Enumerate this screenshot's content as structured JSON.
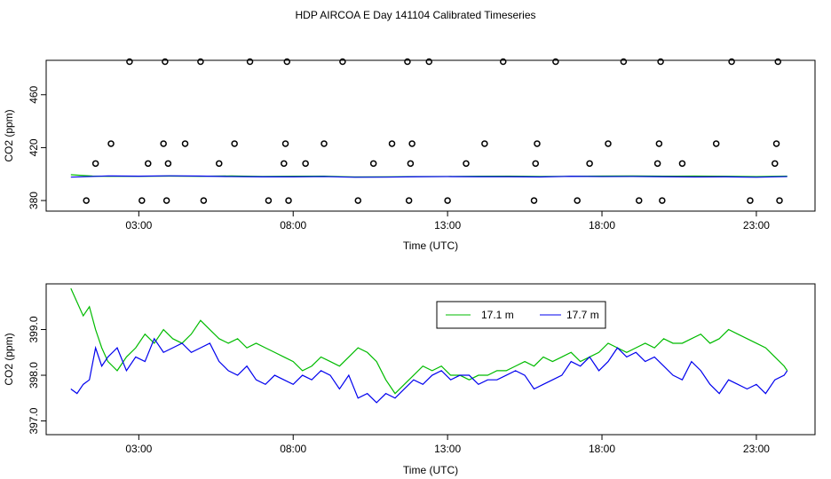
{
  "figure": {
    "title": "HDP AIRCOA E  Day 141104  Calibrated Timeseries"
  },
  "colors": {
    "green": "#00bb00",
    "blue": "#0000ee",
    "axis": "#000000"
  },
  "chart_data": [
    {
      "type": "scatter",
      "title": "HDP AIRCOA E  Day 141104  Calibrated Timeseries",
      "xlabel": "Time (UTC)",
      "ylabel": "CO2 (ppm)",
      "xlim": [
        0.0,
        24.9
      ],
      "ylim": [
        372,
        486
      ],
      "x_ticks": [
        3,
        8,
        13,
        18,
        23
      ],
      "x_tick_labels": [
        "03:00",
        "08:00",
        "13:00",
        "18:00",
        "23:00"
      ],
      "y_ticks": [
        380,
        420,
        460
      ],
      "y_tick_labels": [
        "380",
        "420",
        "460"
      ],
      "grid": false,
      "series": [
        {
          "color": "green",
          "style": "line",
          "x": [
            0.8,
            1.5,
            2.0,
            3.0,
            4.0,
            5.0,
            6.0,
            7.0,
            8.0,
            9.0,
            10.0,
            11.0,
            12.0,
            13.0,
            14.0,
            15.0,
            16.0,
            17.0,
            18.0,
            19.0,
            20.0,
            21.0,
            22.0,
            23.0,
            24.0
          ],
          "y": [
            399.5,
            398.5,
            398.3,
            398.3,
            398.5,
            398.3,
            398.6,
            398.2,
            398.3,
            398.4,
            397.8,
            397.9,
            398.1,
            398.2,
            398.3,
            398.4,
            398.2,
            398.3,
            398.5,
            398.6,
            398.4,
            398.5,
            398.3,
            398.1,
            398.4
          ]
        },
        {
          "color": "blue",
          "style": "line",
          "x": [
            0.8,
            1.5,
            2.0,
            3.0,
            4.0,
            5.0,
            6.0,
            7.0,
            8.0,
            9.0,
            10.0,
            11.0,
            12.0,
            13.0,
            14.0,
            15.0,
            16.0,
            17.0,
            18.0,
            19.0,
            20.0,
            21.0,
            22.0,
            23.0,
            24.0
          ],
          "y": [
            397.7,
            398.2,
            398.6,
            398.4,
            398.7,
            398.5,
            398.1,
            397.9,
            397.9,
            398.1,
            397.6,
            397.7,
            398.0,
            398.1,
            398.0,
            398.0,
            397.8,
            398.3,
            398.1,
            398.2,
            398.0,
            397.8,
            397.9,
            397.6,
            398.1
          ]
        },
        {
          "color": "black",
          "style": "points",
          "x": [
            1.3,
            1.6,
            2.1,
            2.7,
            3.1,
            3.3,
            3.8,
            3.85,
            3.9,
            3.95,
            4.5,
            5.0,
            5.1,
            5.6,
            6.1,
            6.6,
            7.2,
            7.7,
            7.75,
            7.8,
            7.85,
            8.4,
            9.0,
            9.6,
            10.1,
            10.6,
            11.2,
            11.7,
            11.75,
            11.8,
            11.85,
            12.4,
            13.0,
            13.6,
            14.2,
            14.8,
            15.8,
            15.85,
            15.9,
            16.5,
            17.2,
            17.6,
            18.2,
            18.7,
            19.2,
            19.8,
            19.85,
            19.9,
            19.95,
            20.6,
            21.7,
            22.2,
            22.8,
            23.6,
            23.65,
            23.7,
            23.75
          ]
        }
      ]
    },
    {
      "type": "line",
      "xlabel": "Time (UTC)",
      "ylabel": "CO2 (ppm)",
      "xlim": [
        0.0,
        24.9
      ],
      "ylim": [
        396.7,
        400.0
      ],
      "x_ticks": [
        3,
        8,
        13,
        18,
        23
      ],
      "x_tick_labels": [
        "03:00",
        "08:00",
        "13:00",
        "18:00",
        "23:00"
      ],
      "y_ticks": [
        397.0,
        398.0,
        399.0
      ],
      "y_tick_labels": [
        "397.0",
        "398.0",
        "399.0"
      ],
      "grid": false,
      "legend": {
        "position": "top-center",
        "entries": [
          "17.1 m",
          "17.7 m"
        ]
      },
      "series": [
        {
          "name": "17.1 m",
          "color": "green",
          "x": [
            0.8,
            1.0,
            1.2,
            1.4,
            1.6,
            1.8,
            2.0,
            2.3,
            2.6,
            2.9,
            3.2,
            3.5,
            3.8,
            4.1,
            4.4,
            4.7,
            5.0,
            5.3,
            5.6,
            5.9,
            6.2,
            6.5,
            6.8,
            7.1,
            7.4,
            7.7,
            8.0,
            8.3,
            8.6,
            8.9,
            9.2,
            9.5,
            9.8,
            10.1,
            10.4,
            10.7,
            11.0,
            11.3,
            11.6,
            11.9,
            12.2,
            12.5,
            12.8,
            13.1,
            13.4,
            13.7,
            14.0,
            14.3,
            14.6,
            14.9,
            15.2,
            15.5,
            15.8,
            16.1,
            16.4,
            16.7,
            17.0,
            17.3,
            17.6,
            17.9,
            18.2,
            18.5,
            18.8,
            19.1,
            19.4,
            19.7,
            20.0,
            20.3,
            20.6,
            20.9,
            21.2,
            21.5,
            21.8,
            22.1,
            22.4,
            22.7,
            23.0,
            23.3,
            23.6,
            23.9,
            24.0
          ],
          "y": [
            399.9,
            399.6,
            399.3,
            399.5,
            399.0,
            398.6,
            398.3,
            398.1,
            398.4,
            398.6,
            398.9,
            398.7,
            399.0,
            398.8,
            398.7,
            398.9,
            399.2,
            399.0,
            398.8,
            398.7,
            398.8,
            398.6,
            398.7,
            398.6,
            398.5,
            398.4,
            398.3,
            398.1,
            398.2,
            398.4,
            398.3,
            398.2,
            398.4,
            398.6,
            398.5,
            398.3,
            397.9,
            397.6,
            397.8,
            398.0,
            398.2,
            398.1,
            398.2,
            398.0,
            398.0,
            397.9,
            398.0,
            398.0,
            398.1,
            398.1,
            398.2,
            398.3,
            398.2,
            398.4,
            398.3,
            398.4,
            398.5,
            398.3,
            398.4,
            398.5,
            398.7,
            398.6,
            398.5,
            398.6,
            398.7,
            398.6,
            398.8,
            398.7,
            398.7,
            398.8,
            398.9,
            398.7,
            398.8,
            399.0,
            398.9,
            398.8,
            398.7,
            398.6,
            398.4,
            398.2,
            398.1
          ]
        },
        {
          "name": "17.7 m",
          "color": "blue",
          "x": [
            0.8,
            1.0,
            1.2,
            1.4,
            1.6,
            1.8,
            2.0,
            2.3,
            2.6,
            2.9,
            3.2,
            3.5,
            3.8,
            4.1,
            4.4,
            4.7,
            5.0,
            5.3,
            5.6,
            5.9,
            6.2,
            6.5,
            6.8,
            7.1,
            7.4,
            7.7,
            8.0,
            8.3,
            8.6,
            8.9,
            9.2,
            9.5,
            9.8,
            10.1,
            10.4,
            10.7,
            11.0,
            11.3,
            11.6,
            11.9,
            12.2,
            12.5,
            12.8,
            13.1,
            13.4,
            13.7,
            14.0,
            14.3,
            14.6,
            14.9,
            15.2,
            15.5,
            15.8,
            16.1,
            16.4,
            16.7,
            17.0,
            17.3,
            17.6,
            17.9,
            18.2,
            18.5,
            18.8,
            19.1,
            19.4,
            19.7,
            20.0,
            20.3,
            20.6,
            20.9,
            21.2,
            21.5,
            21.8,
            22.1,
            22.4,
            22.7,
            23.0,
            23.3,
            23.6,
            23.9,
            24.0
          ],
          "y": [
            397.7,
            397.6,
            397.8,
            397.9,
            398.6,
            398.2,
            398.4,
            398.6,
            398.1,
            398.4,
            398.3,
            398.8,
            398.5,
            398.6,
            398.7,
            398.5,
            398.6,
            398.7,
            398.3,
            398.1,
            398.0,
            398.2,
            397.9,
            397.8,
            398.0,
            397.9,
            397.8,
            398.0,
            397.9,
            398.1,
            398.0,
            397.7,
            398.0,
            397.5,
            397.6,
            397.4,
            397.6,
            397.5,
            397.7,
            397.9,
            397.8,
            398.0,
            398.1,
            397.9,
            398.0,
            398.0,
            397.8,
            397.9,
            397.9,
            398.0,
            398.1,
            398.0,
            397.7,
            397.8,
            397.9,
            398.0,
            398.3,
            398.2,
            398.4,
            398.1,
            398.3,
            398.6,
            398.4,
            398.5,
            398.3,
            398.4,
            398.2,
            398.0,
            397.9,
            398.3,
            398.1,
            397.8,
            397.6,
            397.9,
            397.8,
            397.7,
            397.8,
            397.6,
            397.9,
            398.0,
            398.1
          ]
        }
      ]
    }
  ]
}
